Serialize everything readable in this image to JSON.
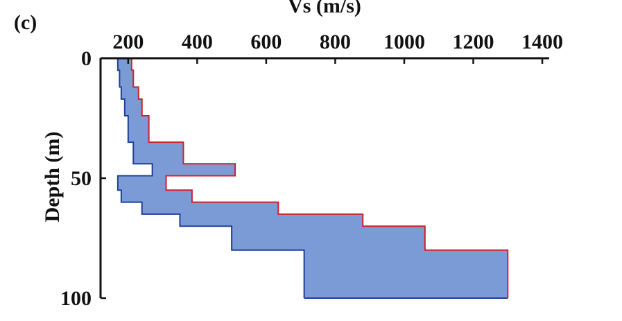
{
  "chart_data": {
    "type": "area",
    "panel_label": "(c)",
    "xlabel": "Vs (m/s)",
    "ylabel": "Depth (m)",
    "x_ticks": [
      200,
      400,
      600,
      800,
      1000,
      1200,
      1400
    ],
    "y_ticks": [
      0,
      50,
      100
    ],
    "xlim": [
      120,
      1420
    ],
    "ylim": [
      0,
      100
    ],
    "x_axis_position": "top",
    "y_axis_reversed": true,
    "grid": false,
    "fill_color": "#7b9bd6",
    "lower_bound_color": "#1f3f9a",
    "upper_bound_color": "#d11f2a",
    "series": [
      {
        "role": "lower_bound",
        "depth": [
          0,
          5,
          5,
          12,
          12,
          17,
          17,
          24,
          24,
          35,
          35,
          44,
          44,
          49,
          49,
          55,
          55,
          60,
          60,
          65,
          65,
          70,
          70,
          80,
          80,
          100
        ],
        "vs": [
          170,
          170,
          175,
          175,
          180,
          180,
          190,
          190,
          200,
          200,
          215,
          215,
          270,
          270,
          170,
          170,
          180,
          180,
          240,
          240,
          350,
          350,
          500,
          500,
          710,
          710
        ]
      },
      {
        "role": "upper_bound",
        "depth": [
          0,
          5,
          5,
          12,
          12,
          17,
          17,
          24,
          24,
          35,
          35,
          44,
          44,
          49,
          49,
          55,
          55,
          60,
          60,
          65,
          65,
          70,
          70,
          80,
          80,
          100
        ],
        "vs": [
          210,
          210,
          215,
          215,
          230,
          230,
          240,
          240,
          260,
          260,
          360,
          360,
          510,
          510,
          310,
          310,
          385,
          385,
          635,
          635,
          880,
          880,
          1060,
          1060,
          1300,
          1300
        ]
      }
    ]
  }
}
